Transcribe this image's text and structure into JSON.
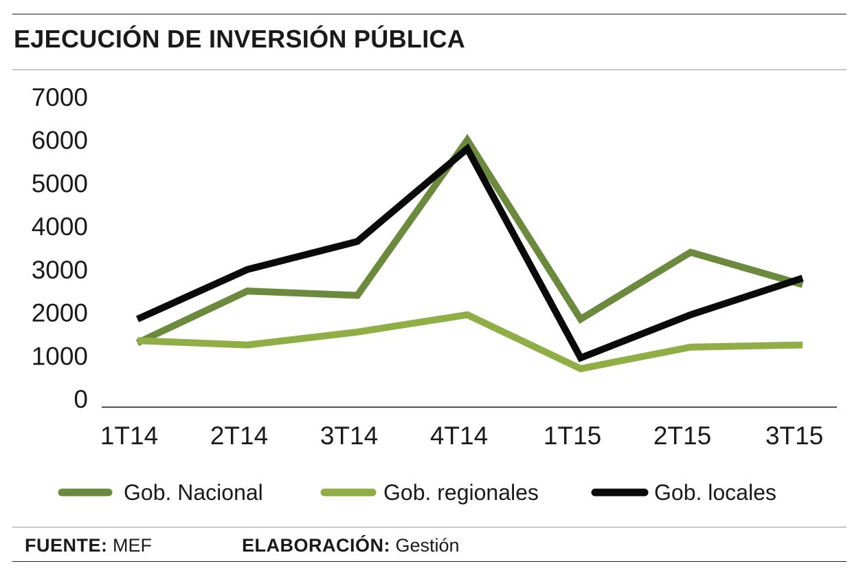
{
  "title": "EJECUCIÓN DE INVERSIÓN PÚBLICA",
  "footer": {
    "source_label": "FUENTE:",
    "source_value": "MEF",
    "credit_label": "ELABORACIÓN:",
    "credit_value": "Gestión"
  },
  "colors": {
    "gob_nacional": "#6b8a3e",
    "gob_regionales": "#8fae45",
    "gob_locales": "#0a0a0a"
  },
  "chart_data": {
    "type": "line",
    "title": "EJECUCIÓN DE INVERSIÓN PÚBLICA",
    "xlabel": "",
    "ylabel": "",
    "categories": [
      "1T14",
      "2T14",
      "3T14",
      "4T14",
      "1T15",
      "2T15",
      "3T15"
    ],
    "ylim": [
      0,
      7000
    ],
    "yticks": [
      0,
      1000,
      2000,
      3000,
      4000,
      5000,
      6000,
      7000
    ],
    "grid": false,
    "legend_position": "bottom",
    "series": [
      {
        "name": "Gob. Nacional",
        "color": "#6b8a3e",
        "values": [
          1300,
          2500,
          2400,
          6000,
          1850,
          3400,
          2650
        ]
      },
      {
        "name": "Gob. regionales",
        "color": "#8fae45",
        "values": [
          1350,
          1250,
          1550,
          1950,
          700,
          1200,
          1250
        ]
      },
      {
        "name": "Gob. locales",
        "color": "#0a0a0a",
        "values": [
          1850,
          3000,
          3650,
          5800,
          950,
          1950,
          2800
        ]
      }
    ]
  }
}
